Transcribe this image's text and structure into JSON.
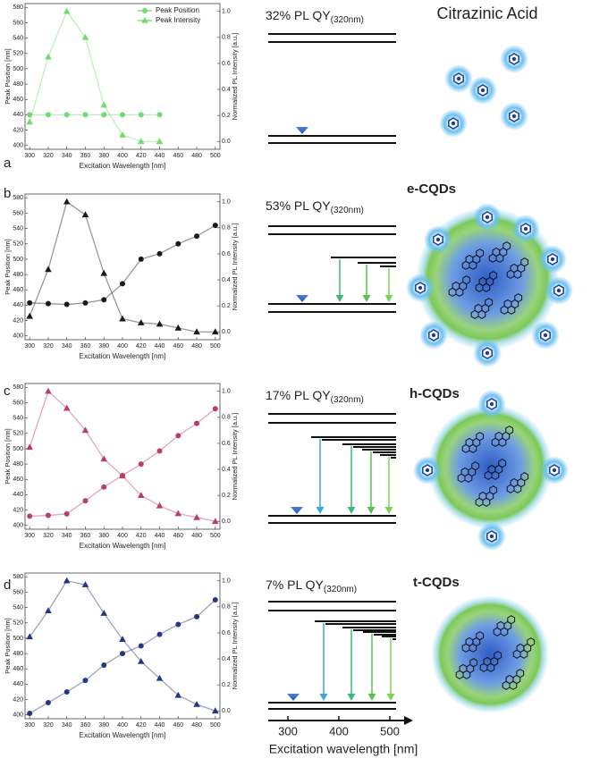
{
  "chart_data": [
    {
      "type": "line",
      "x_label": "Excitation Wavelength [nm]",
      "y_label": "Peak Position [nm]",
      "y2_label": "Normalized PL Intensity [a.u.]",
      "x": [
        300,
        320,
        340,
        360,
        380,
        400,
        420,
        440
      ],
      "series": [
        {
          "name": "Peak Position",
          "color": "#6fdc6f",
          "marker": "circle",
          "values": [
            440,
            440,
            440,
            440,
            440,
            440,
            440,
            440
          ]
        },
        {
          "name": "Peak Intensity",
          "color": "#6fdc6f",
          "marker": "triangle",
          "axis": "y2",
          "values": [
            0.15,
            0.65,
            1.0,
            0.8,
            0.28,
            0.05,
            0.0,
            0.0
          ]
        }
      ],
      "legend": "upper right",
      "xlim": [
        295,
        505
      ],
      "xticks": [
        300,
        320,
        340,
        360,
        380,
        400,
        420,
        440,
        460,
        480,
        500
      ],
      "ylim": [
        395,
        585
      ],
      "yticks": [
        400,
        420,
        440,
        460,
        480,
        500,
        520,
        540,
        560,
        580
      ],
      "y2lim": [
        -0.06,
        1.06
      ],
      "y2ticks": [
        {
          "value": 0,
          "label": "0.0"
        },
        0.2,
        0.4,
        0.6,
        0.8,
        {
          "value": 1,
          "label": "1.0"
        }
      ]
    },
    {
      "type": "line",
      "x_label": "Excitation Wavelength [nm]",
      "y_label": "Peak Position [nm]",
      "y2_label": "Normalized PL Intensity [a.u.]",
      "x": [
        300,
        320,
        340,
        360,
        380,
        400,
        420,
        440,
        460,
        480,
        500
      ],
      "series": [
        {
          "color": "#1a1a1a",
          "marker": "circle",
          "values": [
            443,
            442,
            441,
            443,
            447,
            468,
            500,
            507,
            520,
            530,
            544
          ]
        },
        {
          "color": "#1a1a1a",
          "marker": "triangle",
          "axis": "y2",
          "values": [
            0.12,
            0.48,
            1.0,
            0.9,
            0.45,
            0.1,
            0.07,
            0.06,
            0.03,
            0.0,
            0.0
          ]
        }
      ],
      "xlim": [
        295,
        505
      ],
      "xticks": [
        300,
        320,
        340,
        360,
        380,
        400,
        420,
        440,
        460,
        480,
        500
      ],
      "ylim": [
        395,
        585
      ],
      "yticks": [
        400,
        420,
        440,
        460,
        480,
        500,
        520,
        540,
        560,
        580
      ],
      "y2lim": [
        -0.06,
        1.06
      ],
      "y2ticks": [
        {
          "value": 0,
          "label": "0.0"
        },
        0.2,
        0.4,
        0.6,
        0.8,
        {
          "value": 1,
          "label": "1.0"
        }
      ]
    },
    {
      "type": "line",
      "x_label": "Excitation Wavelength [nm]",
      "y_label": "Peak Position [nm]",
      "y2_label": "Normalized PL Intensity [a.u.]",
      "x": [
        300,
        320,
        340,
        360,
        380,
        400,
        420,
        440,
        460,
        480,
        500
      ],
      "series": [
        {
          "color": "#b8405e",
          "marker": "circle",
          "values": [
            412,
            413,
            415,
            432,
            450,
            465,
            480,
            497,
            517,
            533,
            552
          ]
        },
        {
          "color": "#b8405e",
          "marker": "triangle",
          "axis": "y2",
          "values": [
            0.57,
            1.0,
            0.87,
            0.7,
            0.48,
            0.35,
            0.2,
            0.12,
            0.06,
            0.03,
            0.0
          ]
        }
      ],
      "xlim": [
        295,
        505
      ],
      "xticks": [
        300,
        320,
        340,
        360,
        380,
        400,
        420,
        440,
        460,
        480,
        500
      ],
      "ylim": [
        395,
        585
      ],
      "yticks": [
        400,
        420,
        440,
        460,
        480,
        500,
        520,
        540,
        560,
        580
      ],
      "y2lim": [
        -0.06,
        1.06
      ],
      "y2ticks": [
        {
          "value": 0,
          "label": "0.0"
        },
        0.2,
        0.4,
        0.6,
        0.8,
        {
          "value": 1,
          "label": "1.0"
        }
      ]
    },
    {
      "type": "line",
      "x_label": "Excitation Wavelength [nm]",
      "y_label": "Peak Position [nm]",
      "y2_label": "Normalized PL Intensity [a.u.]",
      "x": [
        300,
        320,
        340,
        360,
        380,
        400,
        420,
        440,
        460,
        480,
        500
      ],
      "series": [
        {
          "color": "#26367f",
          "marker": "circle",
          "values": [
            402,
            416,
            430,
            445,
            465,
            480,
            490,
            505,
            518,
            528,
            550
          ]
        },
        {
          "color": "#26367f",
          "marker": "triangle",
          "axis": "y2",
          "values": [
            0.57,
            0.77,
            1.0,
            0.97,
            0.75,
            0.55,
            0.38,
            0.25,
            0.12,
            0.05,
            0.0
          ]
        }
      ],
      "xlim": [
        295,
        505
      ],
      "xticks": [
        300,
        320,
        340,
        360,
        380,
        400,
        420,
        440,
        460,
        480,
        500
      ],
      "ylim": [
        395,
        585
      ],
      "yticks": [
        400,
        420,
        440,
        460,
        480,
        500,
        520,
        540,
        560,
        580
      ],
      "y2lim": [
        -0.06,
        1.06
      ],
      "y2ticks": [
        {
          "value": 0,
          "label": "0.0"
        },
        0.2,
        0.4,
        0.6,
        0.8,
        {
          "value": 1,
          "label": "1.0"
        }
      ]
    }
  ],
  "panels": [
    {
      "label": "a",
      "qy": "32% PL QY",
      "qy_sub": "(320nm)",
      "name": "Citrazinic Acid"
    },
    {
      "label": "b",
      "qy": "53% PL QY",
      "qy_sub": "(320nm)",
      "name": "e-CQDs"
    },
    {
      "label": "c",
      "qy": "17% PL QY",
      "qy_sub": "(320nm)",
      "name": "h-CQDs"
    },
    {
      "label": "d",
      "qy": "7% PL QY",
      "qy_sub": "(320nm)",
      "name": "t-CQDs"
    }
  ],
  "energy_axis": {
    "label": "Excitation wavelength [nm]",
    "ticks": [
      300,
      400,
      500
    ]
  }
}
